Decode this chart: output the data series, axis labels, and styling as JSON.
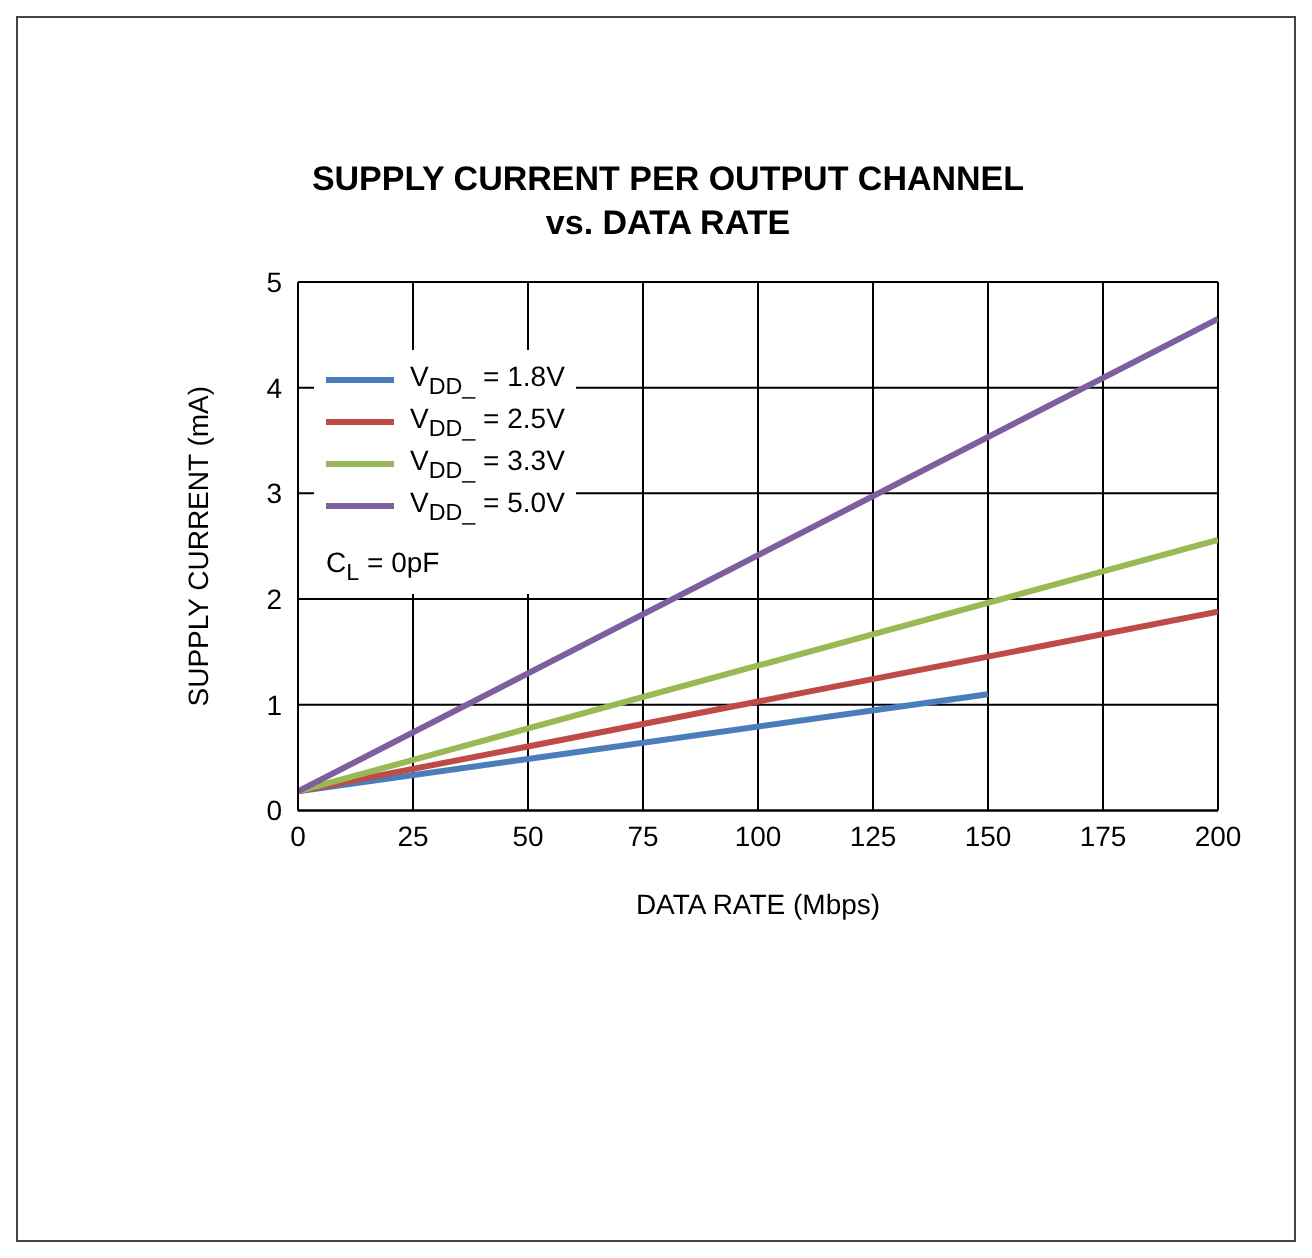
{
  "chart_data": {
    "type": "line",
    "title": "SUPPLY CURRENT PER OUTPUT CHANNEL\nvs. DATA RATE",
    "xlabel": "DATA RATE (Mbps)",
    "ylabel": "SUPPLY CURRENT (mA)",
    "xlim": [
      0,
      200
    ],
    "xticks": [
      0,
      25,
      50,
      75,
      100,
      125,
      150,
      175,
      200
    ],
    "ylim": [
      0,
      5
    ],
    "yticks": [
      0,
      1,
      2,
      3,
      4,
      5
    ],
    "grid": true,
    "legend": "top left",
    "line_style": "solid",
    "marker": "none",
    "annotations": [
      "C$_{L}$ = 0pF"
    ],
    "series": [
      {
        "name": "V$_{DD_}$ = 1.8V",
        "color": "#4a7ebb",
        "x": [
          0,
          150
        ],
        "values": [
          0.18,
          1.1
        ]
      },
      {
        "name": "V$_{DD_}$ = 2.5V",
        "color": "#be4b48",
        "x": [
          0,
          200
        ],
        "values": [
          0.18,
          1.88
        ]
      },
      {
        "name": "V$_{DD_}$ = 3.3V",
        "color": "#98b954",
        "x": [
          0,
          200
        ],
        "values": [
          0.18,
          2.56
        ]
      },
      {
        "name": "V$_{DD_}$ = 5.0V",
        "color": "#7d5fa0",
        "x": [
          0,
          200
        ],
        "values": [
          0.18,
          4.65
        ]
      }
    ]
  }
}
